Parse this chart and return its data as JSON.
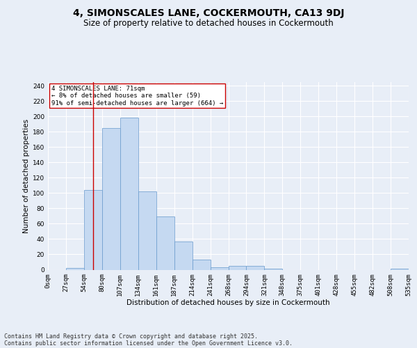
{
  "title1": "4, SIMONSCALES LANE, COCKERMOUTH, CA13 9DJ",
  "title2": "Size of property relative to detached houses in Cockermouth",
  "xlabel": "Distribution of detached houses by size in Cockermouth",
  "ylabel": "Number of detached properties",
  "bin_labels": [
    "0sqm",
    "27sqm",
    "54sqm",
    "80sqm",
    "107sqm",
    "134sqm",
    "161sqm",
    "187sqm",
    "214sqm",
    "241sqm",
    "268sqm",
    "294sqm",
    "321sqm",
    "348sqm",
    "375sqm",
    "401sqm",
    "428sqm",
    "455sqm",
    "482sqm",
    "508sqm",
    "535sqm"
  ],
  "bar_values": [
    0,
    2,
    104,
    185,
    198,
    102,
    69,
    37,
    13,
    3,
    5,
    5,
    1,
    0,
    0,
    0,
    0,
    0,
    0,
    1
  ],
  "bar_color": "#c5d9f1",
  "bar_edge_color": "#6699cc",
  "vline_x": 2.5,
  "vline_color": "#cc0000",
  "annotation_text": "4 SIMONSCALES LANE: 71sqm\n← 8% of detached houses are smaller (59)\n91% of semi-detached houses are larger (664) →",
  "annotation_box_color": "#ffffff",
  "annotation_box_edge": "#cc0000",
  "ylim": [
    0,
    245
  ],
  "yticks": [
    0,
    20,
    40,
    60,
    80,
    100,
    120,
    140,
    160,
    180,
    200,
    220,
    240
  ],
  "footer1": "Contains HM Land Registry data © Crown copyright and database right 2025.",
  "footer2": "Contains public sector information licensed under the Open Government Licence v3.0.",
  "bg_color": "#e8eef7",
  "plot_bg_color": "#e8eef7",
  "grid_color": "#ffffff",
  "title1_fontsize": 10,
  "title2_fontsize": 8.5,
  "axis_fontsize": 7.5,
  "tick_fontsize": 6.5,
  "annotation_fontsize": 6.5,
  "footer_fontsize": 6
}
